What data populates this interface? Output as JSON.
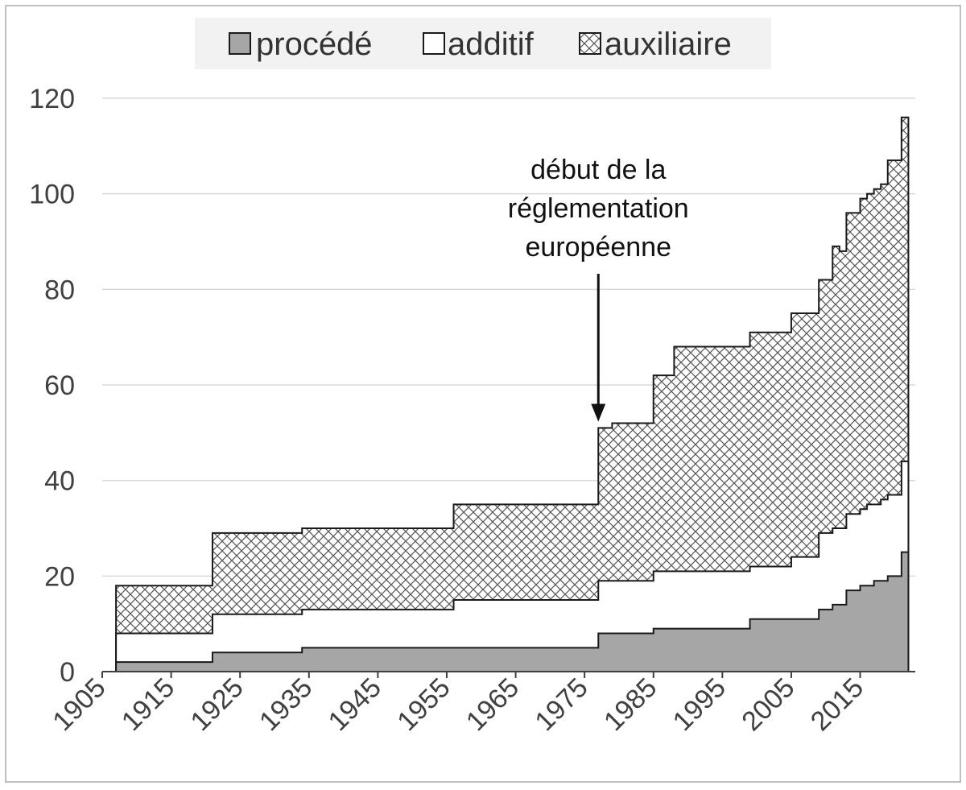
{
  "chart_data": {
    "type": "area",
    "step": true,
    "stacked": true,
    "title": "",
    "xlabel": "",
    "ylabel": "",
    "xlim": [
      1905,
      2023
    ],
    "ylim": [
      0,
      120
    ],
    "x_ticks": [
      "1905",
      "1915",
      "1925",
      "1935",
      "1945",
      "1955",
      "1965",
      "1975",
      "1985",
      "1995",
      "2005",
      "2015"
    ],
    "y_ticks": [
      "0",
      "20",
      "40",
      "60",
      "80",
      "100",
      "120"
    ],
    "grid": "horizontal",
    "legend_position": "top-center",
    "series": [
      {
        "name": "procédé",
        "fill": "grey",
        "points": [
          [
            1907,
            2
          ],
          [
            1921,
            4
          ],
          [
            1934,
            5
          ],
          [
            1977,
            8
          ],
          [
            1985,
            9
          ],
          [
            1999,
            11
          ],
          [
            2009,
            13
          ],
          [
            2011,
            14
          ],
          [
            2013,
            17
          ],
          [
            2015,
            18
          ],
          [
            2017,
            19
          ],
          [
            2019,
            20
          ],
          [
            2021,
            25
          ],
          [
            2022,
            25
          ]
        ]
      },
      {
        "name": "additif",
        "fill": "white",
        "points": [
          [
            1907,
            8
          ],
          [
            1921,
            12
          ],
          [
            1934,
            13
          ],
          [
            1956,
            15
          ],
          [
            1977,
            19
          ],
          [
            1985,
            21
          ],
          [
            1999,
            22
          ],
          [
            2005,
            24
          ],
          [
            2009,
            29
          ],
          [
            2011,
            30
          ],
          [
            2013,
            33
          ],
          [
            2015,
            34
          ],
          [
            2016,
            35
          ],
          [
            2018,
            36
          ],
          [
            2019,
            37
          ],
          [
            2021,
            44
          ],
          [
            2022,
            44
          ]
        ]
      },
      {
        "name": "auxiliaire",
        "fill": "crosshatch",
        "points": [
          [
            1907,
            18
          ],
          [
            1921,
            29
          ],
          [
            1934,
            30
          ],
          [
            1956,
            35
          ],
          [
            1977,
            51
          ],
          [
            1979,
            52
          ],
          [
            1985,
            62
          ],
          [
            1988,
            68
          ],
          [
            1999,
            71
          ],
          [
            2005,
            75
          ],
          [
            2009,
            82
          ],
          [
            2011,
            89
          ],
          [
            2012,
            88
          ],
          [
            2013,
            96
          ],
          [
            2015,
            99
          ],
          [
            2016,
            100
          ],
          [
            2017,
            101
          ],
          [
            2018,
            102
          ],
          [
            2019,
            107
          ],
          [
            2021,
            116
          ],
          [
            2022,
            116
          ]
        ]
      }
    ],
    "annotations": [
      {
        "lines": [
          "début de la",
          "réglementation",
          "européenne"
        ],
        "arrow_to": [
          1977,
          52
        ]
      }
    ],
    "colors": {
      "procede_fill": "#a6a6a6",
      "line": "#1a1a1a",
      "grid": "#d9d9d9",
      "legend_bg": "#f2f2f2"
    }
  }
}
